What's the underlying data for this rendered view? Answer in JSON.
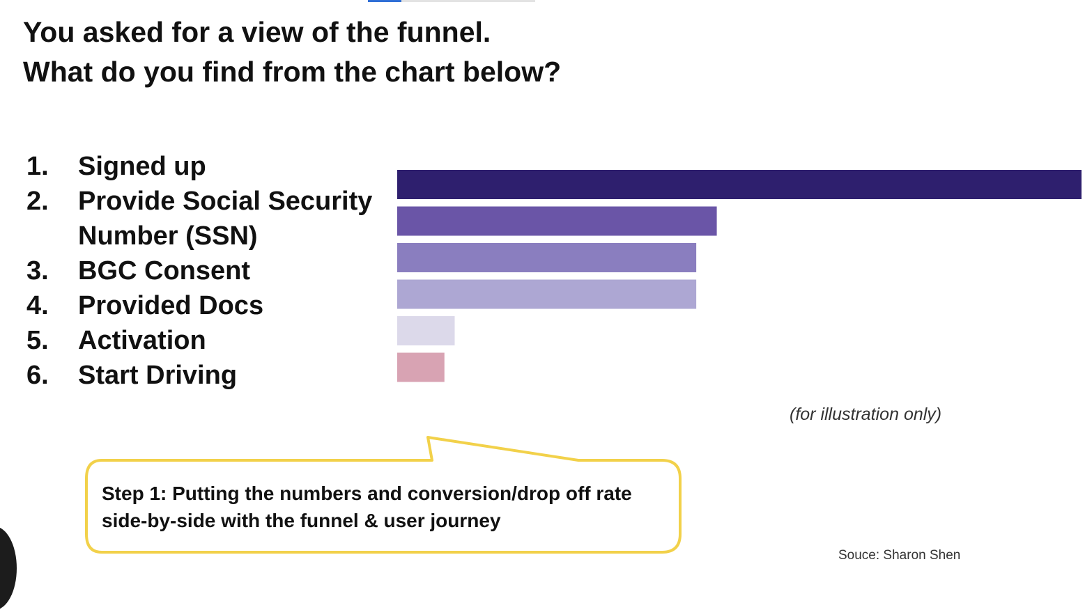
{
  "slide": {
    "title_lines": [
      "You asked for a view of the funnel.",
      "What do you find from the chart below?"
    ],
    "progress_fraction": 0.2
  },
  "funnel_steps": [
    {
      "number": "1.",
      "label": "Signed up"
    },
    {
      "number": "2.",
      "label": "Provide Social Security Number (SSN)"
    },
    {
      "number": "3.",
      "label": "BGC Consent"
    },
    {
      "number": "4.",
      "label": "Provided Docs"
    },
    {
      "number": "5.",
      "label": "Activation"
    },
    {
      "number": "6.",
      "label": "Start Driving"
    }
  ],
  "chart_data": {
    "type": "bar",
    "orientation": "horizontal",
    "categories": [
      "Signed up",
      "Provide Social Security Number (SSN)",
      "BGC Consent",
      "Provided Docs",
      "Activation",
      "Start Driving"
    ],
    "values": [
      100,
      46.7,
      43.7,
      43.7,
      8.4,
      6.9
    ],
    "colors": [
      "#2e1f6e",
      "#6a55a7",
      "#8a7ebf",
      "#ada7d3",
      "#dcd9ea",
      "#d8a3b3"
    ],
    "xlim": [
      0,
      100
    ],
    "grid": false,
    "legend": "none",
    "title": "",
    "xlabel": "",
    "ylabel": ""
  },
  "chart_note": "(for illustration only)",
  "callout": {
    "text": "Step 1: Putting the numbers and conversion/drop off rate side-by-side with the funnel & user journey",
    "border_color": "#f2d14a"
  },
  "source": "Souce: Sharon Shen"
}
